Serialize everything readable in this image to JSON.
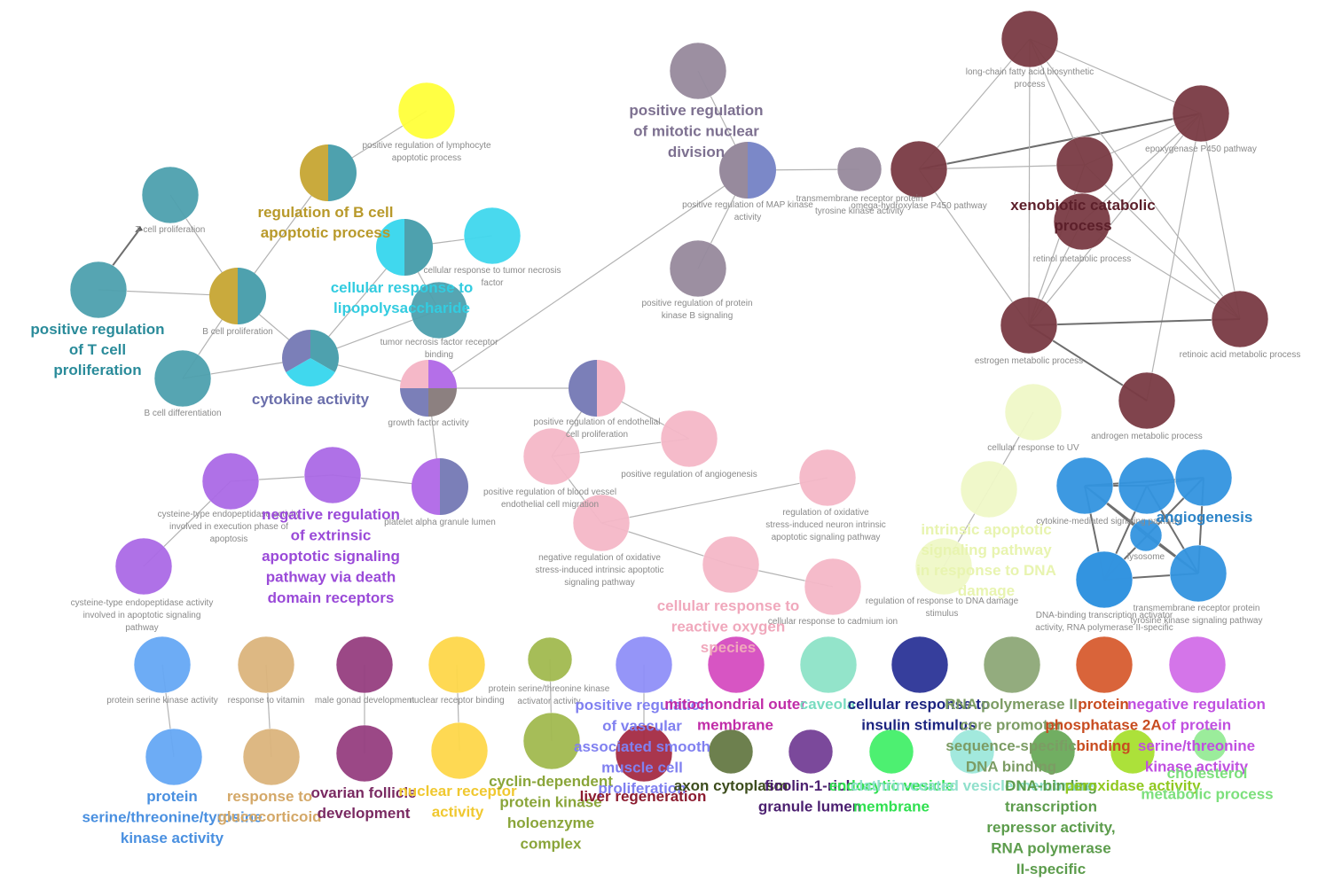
{
  "nodes": {
    "tcell_prolif": {
      "label": "T cell proliferation",
      "colors": [
        "#4ea1ae"
      ]
    },
    "pos_reg_tcell": {
      "label": "",
      "colors": [
        "#4ea1ae"
      ]
    },
    "bcell_prolif": {
      "label": "B cell proliferation",
      "colors": [
        "#4ea1ae",
        "#c9aa3d"
      ]
    },
    "bcell_diff": {
      "label": "B cell differentiation",
      "colors": [
        "#4ea1ae"
      ]
    },
    "reg_bcell_apopt": {
      "label": "",
      "colors": [
        "#4ea1ae",
        "#c9aa3d"
      ]
    },
    "pos_reg_lymph_apopt": {
      "label": "positive regulation of lymphocyte apoptotic process",
      "colors": [
        "#ffff3a"
      ]
    },
    "cell_resp_lps": {
      "label": "",
      "colors": [
        "#4ea1ae",
        "#40d8ee"
      ]
    },
    "cell_resp_tnf": {
      "label": "cellular response to tumor necrosis factor",
      "colors": [
        "#40d8ee"
      ]
    },
    "tnf_receptor_binding": {
      "label": "tumor necrosis factor receptor binding",
      "colors": [
        "#4ea1ae"
      ]
    },
    "cytokine_activity": {
      "label": "",
      "colors": [
        "#4ea1ae",
        "#40d8ee",
        "#7b7fb8"
      ]
    },
    "growth_factor": {
      "label": "growth factor activity",
      "colors": [
        "#b46fe8",
        "#8c8080",
        "#7b7fb8",
        "#f5b8c8"
      ]
    },
    "platelet_alpha": {
      "label": "platelet alpha granule lumen",
      "colors": [
        "#7b7fb8",
        "#b46fe8"
      ]
    },
    "neg_reg_extrinsic": {
      "label": "",
      "colors": [
        "#ab6ae6"
      ]
    },
    "cyst_endopep_exec": {
      "label": "cysteine-type endopeptidase activity involved in execution phase of apoptosis",
      "colors": [
        "#ab6ae6"
      ]
    },
    "cyst_endopep_apopt": {
      "label": "cysteine-type endopeptidase activity involved in apoptotic signaling pathway",
      "colors": [
        "#ab6ae6"
      ]
    },
    "pos_reg_mitotic": {
      "label": "",
      "colors": [
        "#978a9d"
      ]
    },
    "pos_reg_mapk": {
      "label": "positive regulation of MAP kinase activity",
      "colors": [
        "#7b88c8",
        "#978a9d"
      ]
    },
    "pos_reg_pkb": {
      "label": "positive regulation of protein kinase B signaling",
      "colors": [
        "#978a9d"
      ]
    },
    "transmembrane_rtk": {
      "label": "transmembrane receptor protein tyrosine kinase activity",
      "colors": [
        "#978a9d"
      ]
    },
    "omega_hydroxylase": {
      "label": "omega-hydroxylase P450 pathway",
      "colors": [
        "#7a3b44"
      ]
    },
    "longchain_fa": {
      "label": "long-chain fatty acid biosynthetic process",
      "colors": [
        "#7a3b44"
      ]
    },
    "epoxygenase": {
      "label": "epoxygenase P450 pathway",
      "colors": [
        "#7a3b44"
      ]
    },
    "xenobiotic": {
      "label": "",
      "colors": [
        "#7a3b44"
      ]
    },
    "retinol": {
      "label": "retinol metabolic process",
      "colors": [
        "#7a3b44"
      ]
    },
    "estrogen": {
      "label": "estrogen metabolic process",
      "colors": [
        "#7a3b44"
      ]
    },
    "retinoic_acid": {
      "label": "retinoic acid metabolic process",
      "colors": [
        "#7a3b44"
      ]
    },
    "androgen": {
      "label": "androgen metabolic process",
      "colors": [
        "#7a3b44"
      ]
    },
    "pos_reg_endoth": {
      "label": "positive regulation of endothelial cell proliferation",
      "colors": [
        "#f5b8c8",
        "#7b7fb8"
      ]
    },
    "pos_reg_angio": {
      "label": "positive regulation of angiogenesis",
      "colors": [
        "#f5b8c8"
      ]
    },
    "pos_reg_bv_migration": {
      "label": "positive regulation of blood vessel endothelial cell migration",
      "colors": [
        "#f5b8c8"
      ]
    },
    "neg_reg_oxid": {
      "label": "negative regulation of oxidative stress-induced intrinsic apoptotic signaling pathway",
      "colors": [
        "#f5b8c8"
      ]
    },
    "reg_oxid_neuron": {
      "label": "regulation of oxidative stress-induced neuron intrinsic apoptotic signaling pathway",
      "colors": [
        "#f5b8c8"
      ]
    },
    "cell_resp_ros": {
      "label": "",
      "colors": [
        "#f5b8c8"
      ]
    },
    "cell_resp_cadmium": {
      "label": "cellular response to cadmium ion",
      "colors": [
        "#f5b8c8"
      ]
    },
    "cell_resp_uv": {
      "label": "cellular response to UV",
      "colors": [
        "#f0f8c8"
      ]
    },
    "intrinsic_apopt_dna": {
      "label": "",
      "colors": [
        "#f0f8c8"
      ]
    },
    "reg_resp_dna": {
      "label": "regulation of response to DNA damage stimulus",
      "colors": [
        "#f0f8c8"
      ]
    },
    "cytokine_mediated": {
      "label": "cytokine-mediated signaling pathway",
      "colors": [
        "#3394e0"
      ]
    },
    "angio_center": {
      "label": "",
      "colors": [
        "#3394e0"
      ]
    },
    "angio_right": {
      "label": "",
      "colors": [
        "#3394e0"
      ]
    },
    "angio_left": {
      "label": "",
      "colors": [
        "#3394e0"
      ]
    },
    "lysosome": {
      "label": "lysosome",
      "colors": [
        "#3394e0"
      ]
    },
    "dna_binding_tf": {
      "label": "DNA-binding transcription activator activity, RNA polymerase II-specific",
      "colors": [
        "#3394e0"
      ]
    },
    "transmembrane_rtk_sig": {
      "label": "transmembrane receptor protein tyrosine kinase signaling pathway",
      "colors": [
        "#3394e0"
      ]
    },
    "protein_serine_kinase": {
      "label": "protein serine kinase activity",
      "colors": [
        "#66a8f5"
      ]
    },
    "protein_st_kinase": {
      "label": "",
      "colors": [
        "#66a8f5"
      ]
    },
    "response_vitamin": {
      "label": "response to vitamin",
      "colors": [
        "#dcb57d"
      ]
    },
    "response_gluco": {
      "label": "",
      "colors": [
        "#dcb57d"
      ]
    },
    "male_gonad": {
      "label": "male gonad development",
      "colors": [
        "#963f80"
      ]
    },
    "ovarian_follicle": {
      "label": "",
      "colors": [
        "#963f80"
      ]
    },
    "nuclear_receptor_binding": {
      "label": "nuclear receptor binding",
      "colors": [
        "#fed84a"
      ]
    },
    "nuclear_receptor_act": {
      "label": "",
      "colors": [
        "#fed84a"
      ]
    },
    "ps_kinase_activator": {
      "label": "protein serine/threonine kinase activator activity",
      "colors": [
        "#a2ba50"
      ]
    },
    "cyclin_dep": {
      "label": "",
      "colors": [
        "#a2ba50"
      ]
    },
    "pos_reg_vsmc": {
      "label": "",
      "colors": [
        "#9090f8"
      ]
    },
    "liver_regen": {
      "label": "",
      "colors": [
        "#a52c44"
      ]
    },
    "mito_outer": {
      "label": "",
      "colors": [
        "#d54cc0"
      ]
    },
    "axon_cytoplasm": {
      "label": "",
      "colors": [
        "#667a45"
      ]
    },
    "caveola": {
      "label": "",
      "colors": [
        "#8ee3c8"
      ]
    },
    "ficolin": {
      "label": "",
      "colors": [
        "#744096"
      ]
    },
    "cell_resp_insulin": {
      "label": "",
      "colors": [
        "#2c3497"
      ]
    },
    "endocytic_vesicle": {
      "label": "",
      "colors": [
        "#44f06a"
      ]
    },
    "rna_pol2_promoter": {
      "label": "",
      "colors": [
        "#8ea878"
      ]
    },
    "dna_binding_repressor": {
      "label": "",
      "colors": [
        "#6aaa5a"
      ]
    },
    "protein_phosphatase": {
      "label": "",
      "colors": [
        "#d85c30"
      ]
    },
    "peroxidase": {
      "label": "",
      "colors": [
        "#a8e030"
      ]
    },
    "neg_reg_pst_kinase": {
      "label": "",
      "colors": [
        "#d26ee8"
      ]
    },
    "cholesterol": {
      "label": "",
      "colors": [
        "#96ec96"
      ]
    },
    "cell_resp_lps_shadow": {
      "label": "",
      "colors": [
        "#9ee8dc"
      ]
    }
  },
  "clusters": {
    "pos_reg_tcell": {
      "lines": [
        "positive regulation",
        "of T cell",
        "proliferation"
      ],
      "color": "#2a8b9a"
    },
    "reg_bcell": {
      "lines": [
        "regulation of B cell",
        "apoptotic process"
      ],
      "color": "#b8992a"
    },
    "cell_resp_lps": {
      "lines": [
        "cellular response to",
        "lipopolysaccharide"
      ],
      "color": "#33cce0"
    },
    "cytokine": {
      "lines": [
        "cytokine activity"
      ],
      "color": "#6a6eab"
    },
    "neg_reg_extrinsic": {
      "lines": [
        "negative regulation",
        "of extrinsic",
        "apoptotic signaling",
        "pathway via death",
        "domain receptors"
      ],
      "color": "#9a4ad8"
    },
    "pos_reg_mitotic": {
      "lines": [
        "positive regulation",
        "of mitotic nuclear",
        "division"
      ],
      "color": "#7d7090"
    },
    "xenobiotic": {
      "lines": [
        "xenobiotic catabolic",
        "process"
      ],
      "color": "#5c1f2a"
    },
    "cell_resp_ros": {
      "lines": [
        "cellular response to",
        "reactive oxygen",
        "species"
      ],
      "color": "#f0a8bc"
    },
    "intrinsic_apopt": {
      "lines": [
        "intrinsic apoptotic",
        "signaling pathway",
        "in response to DNA",
        "damage"
      ],
      "color": "#e8f4b0"
    },
    "angiogenesis": {
      "lines": [
        "angiogenesis"
      ],
      "color": "#2c84c8"
    },
    "protein_st_kinase": {
      "lines": [
        "protein",
        "serine/threonine/tyrosine",
        "kinase activity"
      ],
      "color": "#4a90e0"
    },
    "response_gluco": {
      "lines": [
        "response to",
        "glucocorticoid"
      ],
      "color": "#d4a868"
    },
    "ovarian": {
      "lines": [
        "ovarian follicle",
        "development"
      ],
      "color": "#7a2a62"
    },
    "nuclear_receptor": {
      "lines": [
        "nuclear receptor",
        "activity"
      ],
      "color": "#f0c830"
    },
    "cyclin": {
      "lines": [
        "cyclin-dependent",
        "protein kinase",
        "holoenzyme",
        "complex"
      ],
      "color": "#8aa53a"
    },
    "pos_reg_vsmc": {
      "lines": [
        "positive regulation",
        "of vascular",
        "associated smooth",
        "muscle cell",
        "proliferation"
      ],
      "color": "#8080f0"
    },
    "mito_outer": {
      "lines": [
        "mitochondrial outer",
        "membrane"
      ],
      "color": "#c02ca8"
    },
    "liver": {
      "lines": [
        "liver regeneration"
      ],
      "color": "#8c1c30"
    },
    "axon": {
      "lines": [
        "axon cytoplasm"
      ],
      "color": "#3c4c1c"
    },
    "caveola": {
      "lines": [
        "caveola"
      ],
      "color": "#78dcc0"
    },
    "ficolin": {
      "lines": [
        "ficolin-1-rich",
        "granule lumen"
      ],
      "color": "#4c2070"
    },
    "insulin": {
      "lines": [
        "cellular response to",
        "insulin stimulus"
      ],
      "color": "#1c2480"
    },
    "endocytic": {
      "lines": [
        "endocytic vesicle",
        "membrane"
      ],
      "color": "#30e050"
    },
    "clathrin_vesicle": {
      "lines": [
        "clathrin-coated vesicle membrane"
      ],
      "color": "#90e0cc"
    },
    "rna_pol2": {
      "lines": [
        "RNA polymerase II",
        "core promoter",
        "sequence-specific",
        "DNA binding"
      ],
      "color": "#7c9c64"
    },
    "dna_repressor": {
      "lines": [
        "DNA-binding",
        "transcription",
        "repressor activity,",
        "RNA polymerase",
        "II-specific"
      ],
      "color": "#5c9c4c"
    },
    "phosphatase": {
      "lines": [
        "protein",
        "phosphatase 2A",
        "binding"
      ],
      "color": "#c84c20"
    },
    "peroxidase": {
      "lines": [
        "peroxidase activity"
      ],
      "color": "#90c820"
    },
    "neg_reg_pst": {
      "lines": [
        "negative regulation",
        "of protein",
        "serine/threonine",
        "kinase activity"
      ],
      "color": "#c050e0"
    },
    "cholesterol": {
      "lines": [
        "cholesterol",
        "metabolic process"
      ],
      "color": "#7ce07c"
    }
  }
}
